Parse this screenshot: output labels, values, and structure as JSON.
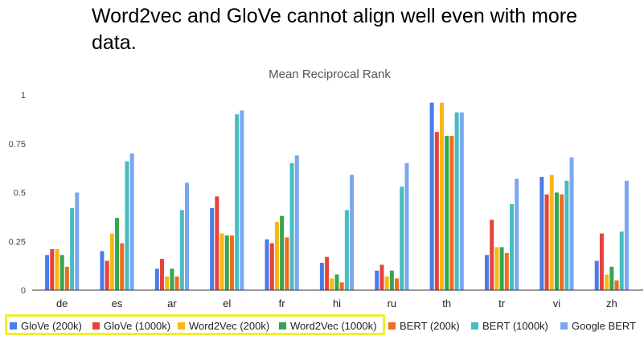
{
  "headline": "Word2vec and GloVe cannot align well even with more data.",
  "chart_data": {
    "type": "bar",
    "title": "Mean Reciprocal Rank",
    "categories": [
      "de",
      "es",
      "ar",
      "el",
      "fr",
      "hi",
      "ru",
      "th",
      "tr",
      "vi",
      "zh"
    ],
    "ylim": [
      0,
      1
    ],
    "yticks": [
      0,
      0.25,
      0.5,
      0.75,
      1
    ],
    "ytick_labels": [
      "0",
      "0.25",
      "0.5",
      "0.75",
      "1"
    ],
    "grid": false,
    "legend_position": "bottom",
    "series": [
      {
        "name": "GloVe (200k)",
        "color": "#4a7de8",
        "values": [
          0.18,
          0.2,
          0.11,
          0.42,
          0.26,
          0.14,
          0.1,
          0.96,
          0.18,
          0.58,
          0.15
        ]
      },
      {
        "name": "GloVe (1000k)",
        "color": "#e8423b",
        "values": [
          0.21,
          0.15,
          0.16,
          0.48,
          0.24,
          0.17,
          0.13,
          0.81,
          0.36,
          0.49,
          0.29
        ]
      },
      {
        "name": "Word2Vec (200k)",
        "color": "#f7b715",
        "values": [
          0.21,
          0.29,
          0.07,
          0.29,
          0.35,
          0.06,
          0.07,
          0.96,
          0.22,
          0.59,
          0.08
        ]
      },
      {
        "name": "Word2Vec (1000k)",
        "color": "#34a551",
        "values": [
          0.18,
          0.37,
          0.11,
          0.28,
          0.38,
          0.08,
          0.1,
          0.79,
          0.22,
          0.5,
          0.12
        ]
      },
      {
        "name": "BERT (200k)",
        "color": "#ef6c1e",
        "values": [
          0.12,
          0.24,
          0.07,
          0.28,
          0.27,
          0.04,
          0.06,
          0.79,
          0.19,
          0.49,
          0.05
        ]
      },
      {
        "name": "BERT (1000k)",
        "color": "#46bdc0",
        "values": [
          0.42,
          0.66,
          0.41,
          0.9,
          0.65,
          0.41,
          0.53,
          0.91,
          0.44,
          0.56,
          0.3
        ]
      },
      {
        "name": "Google BERT",
        "color": "#7ba7f1",
        "values": [
          0.5,
          0.7,
          0.55,
          0.92,
          0.69,
          0.59,
          0.65,
          0.91,
          0.57,
          0.68,
          0.56
        ]
      }
    ]
  }
}
